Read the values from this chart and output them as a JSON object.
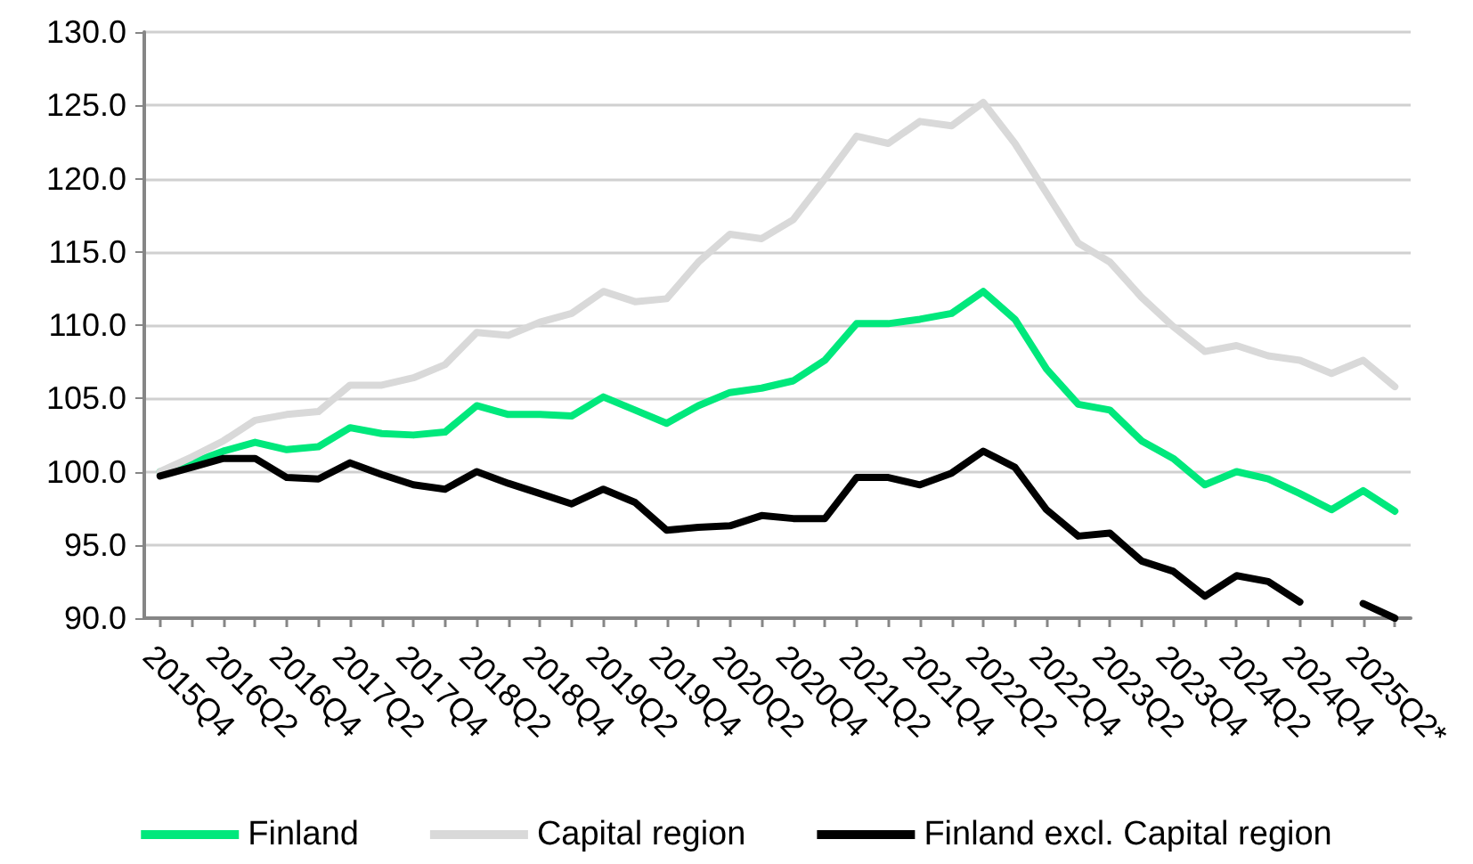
{
  "chart_data": {
    "type": "line",
    "categories": [
      "2015Q4",
      null,
      "2016Q2",
      null,
      "2016Q4",
      null,
      "2017Q2",
      null,
      "2017Q4",
      null,
      "2018Q2",
      null,
      "2018Q4",
      null,
      "2019Q2",
      null,
      "2019Q4",
      null,
      "2020Q2",
      null,
      "2020Q4",
      null,
      "2021Q2",
      null,
      "2021Q4",
      null,
      "2022Q2",
      null,
      "2022Q4",
      null,
      "2023Q2",
      null,
      "2023Q4",
      null,
      "2024Q2",
      null,
      "2024Q4",
      null,
      "2025Q2*",
      null
    ],
    "series": [
      {
        "name": "Finland",
        "color": "#00e87c",
        "values": [
          100.0,
          100.6,
          101.4,
          102.0,
          101.5,
          101.7,
          103.0,
          102.6,
          102.5,
          102.7,
          104.5,
          103.9,
          103.9,
          103.8,
          105.1,
          104.2,
          103.3,
          104.5,
          105.4,
          105.7,
          106.2,
          107.6,
          110.1,
          110.1,
          110.4,
          110.8,
          112.3,
          110.4,
          107.0,
          104.6,
          104.2,
          102.1,
          100.9,
          99.1,
          100.0,
          99.5,
          98.5,
          97.4,
          98.7,
          97.3
        ]
      },
      {
        "name": "Capital region",
        "color": "#d9d9d9",
        "values": [
          100.0,
          101.0,
          102.1,
          103.5,
          103.9,
          104.1,
          105.9,
          105.9,
          106.4,
          107.3,
          109.5,
          109.3,
          110.2,
          110.8,
          112.3,
          111.6,
          111.8,
          114.3,
          116.2,
          115.9,
          117.2,
          120.0,
          122.9,
          122.4,
          123.9,
          123.6,
          125.2,
          122.4,
          119.0,
          115.6,
          114.3,
          111.9,
          109.9,
          108.2,
          108.6,
          107.9,
          107.6,
          106.7,
          107.6,
          105.8
        ]
      },
      {
        "name": "Finland excl. Capital region",
        "color": "#000000",
        "values": [
          99.7,
          100.3,
          100.9,
          100.9,
          99.6,
          99.5,
          100.6,
          99.8,
          99.1,
          98.8,
          100.0,
          99.2,
          98.5,
          97.8,
          98.8,
          97.9,
          96.0,
          96.2,
          96.3,
          97.0,
          96.8,
          96.8,
          99.6,
          99.6,
          99.1,
          99.9,
          101.4,
          100.3,
          97.4,
          95.6,
          95.8,
          93.9,
          93.2,
          91.5,
          92.9,
          92.5,
          91.1,
          null,
          91.0,
          90.0
        ]
      }
    ],
    "ylim": [
      90,
      130
    ],
    "yticks": [
      {
        "value": 90,
        "label": "90.0"
      },
      {
        "value": 95,
        "label": "95.0"
      },
      {
        "value": 100,
        "label": "100.0"
      },
      {
        "value": 105,
        "label": "105.0"
      },
      {
        "value": 110,
        "label": "110.0"
      },
      {
        "value": 115,
        "label": "115.0"
      },
      {
        "value": 120,
        "label": "120.0"
      },
      {
        "value": 125,
        "label": "125.0"
      },
      {
        "value": 130,
        "label": "130.0"
      }
    ],
    "grid": "y",
    "legend": "bottom",
    "marker": "none",
    "line_style": "solid"
  }
}
